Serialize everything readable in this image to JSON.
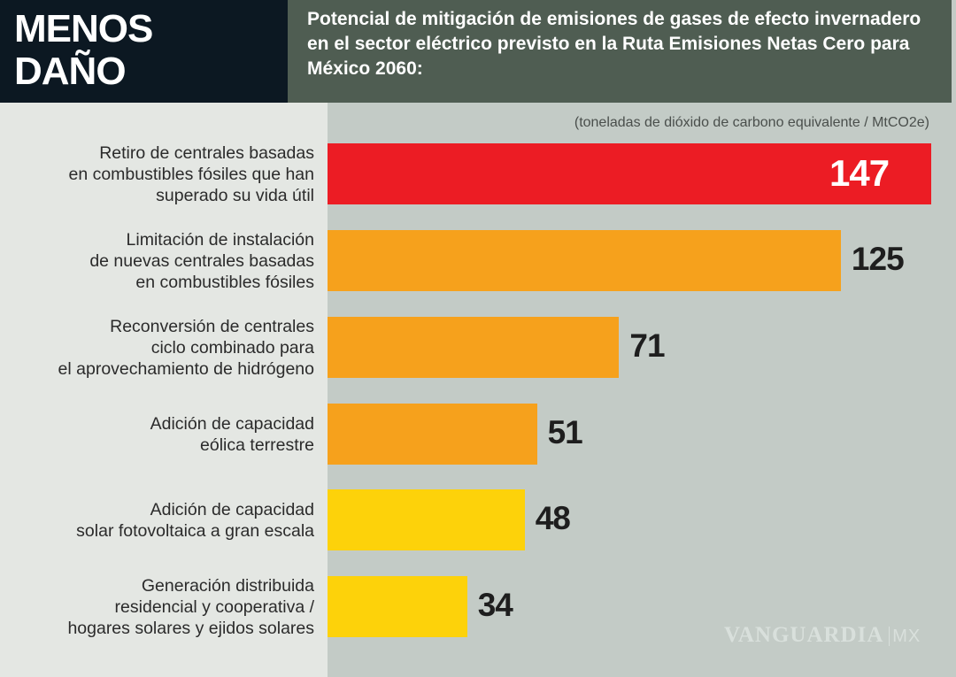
{
  "header": {
    "kicker_line1": "MENOS",
    "kicker_line2": "DAÑO"
  },
  "chart_data": {
    "type": "bar",
    "orientation": "horizontal",
    "title": "Potencial de mitigación de emisiones de gases de efecto invernadero en el sector eléctrico previsto en la Ruta Emisiones Netas Cero para México 2060:",
    "unit": "(toneladas de dióxido de carbono equivalente / MtCO2e)",
    "categories": [
      [
        "Retiro de centrales basadas",
        "en combustibles fósiles que han",
        "superado su vida útil"
      ],
      [
        "Limitación de instalación",
        "de nuevas centrales basadas",
        "en combustibles fósiles"
      ],
      [
        "Reconversión de centrales",
        "ciclo combinado para",
        "el aprovechamiento de hidrógeno"
      ],
      [
        "Adición de capacidad",
        "eólica terrestre"
      ],
      [
        "Adición de capacidad",
        "solar fotovoltaica a gran escala"
      ],
      [
        "Generación distribuida",
        "residencial y cooperativa /",
        "hogares solares y ejidos solares"
      ]
    ],
    "values": [
      147,
      125,
      71,
      51,
      48,
      34
    ],
    "value_labels": [
      "147",
      "125",
      "71",
      "51",
      "48",
      "34"
    ],
    "colors": [
      "#ec1c24",
      "#f6a11c",
      "#f6a11c",
      "#f6a11c",
      "#fdd20a",
      "#fdd20a"
    ],
    "grid": false
  },
  "watermark": {
    "text": "VANGUARDIA",
    "suffix": "MX"
  }
}
